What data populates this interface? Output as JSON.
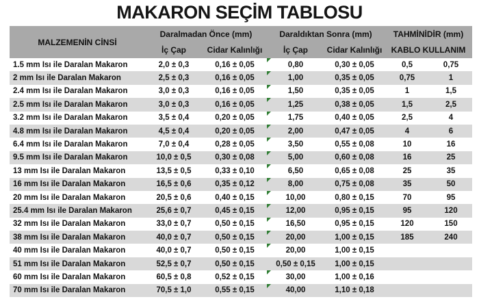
{
  "title": "MAKARON SEÇİM TABLOSU",
  "header": {
    "material": "MALZEMENİN CİNSİ",
    "before_group": "Daralmadan Önce (mm)",
    "after_group": "Daraldıktan Sonra (mm)",
    "estimate_group": "TAHMİNİDİR (mm)",
    "inner_diameter": "İç Çap",
    "wall_thickness": "Cidar Kalınlığı",
    "cable_usage": "KABLO KULLANIM"
  },
  "colors": {
    "header_bg": "#a9a9a9",
    "stripe_bg": "#d9d9d9",
    "indicator_green": "#2e7d32",
    "text": "#111111"
  },
  "chart_data": {
    "type": "table",
    "title": "MAKARON SEÇİM TABLOSU",
    "column_groups": [
      "MALZEMENİN CİNSİ",
      "Daralmadan Önce (mm)",
      "Daraldıktan Sonra (mm)",
      "TAHMİNİDİR (mm) KABLO KULLANIM"
    ],
    "columns": [
      "MALZEMENİN CİNSİ",
      "Daralmadan Önce İç Çap",
      "Daralmadan Önce Cidar Kalınlığı",
      "Daraldıktan Sonra İç Çap",
      "Daraldıktan Sonra Cidar Kalınlığı",
      "KABLO KULLANIM (alt)",
      "KABLO KULLANIM (üst)"
    ],
    "rows": [
      {
        "material": "1.5 mm Isı ile Daralan Makaron",
        "before_ic": "2,0 ± 0,3",
        "before_wall": "0,16 ± 0,05",
        "after_ic": "0,80",
        "after_wall": "0,30 ± 0,05",
        "cable_a": "0,5",
        "cable_b": "0,75",
        "indicator": true
      },
      {
        "material": "2 mm Isı ile Daralan Makaron",
        "before_ic": "2,5 ± 0,3",
        "before_wall": "0,16 ± 0,05",
        "after_ic": "1,00",
        "after_wall": "0,35 ± 0,05",
        "cable_a": "0,75",
        "cable_b": "1",
        "indicator": true
      },
      {
        "material": "2.4 mm Isı ile Daralan Makaron",
        "before_ic": "3,0 ± 0,3",
        "before_wall": "0,16 ± 0,05",
        "after_ic": "1,50",
        "after_wall": "0,35 ± 0,05",
        "cable_a": "1",
        "cable_b": "1,5",
        "indicator": true
      },
      {
        "material": "2.5 mm Isı ile Daralan Makaron",
        "before_ic": "3,0 ± 0,3",
        "before_wall": "0,16 ± 0,05",
        "after_ic": "1,25",
        "after_wall": "0,38 ± 0,05",
        "cable_a": "1,5",
        "cable_b": "2,5",
        "indicator": true
      },
      {
        "material": "3.2 mm Isı ile Daralan Makaron",
        "before_ic": "3,5 ± 0,4",
        "before_wall": "0,20 ± 0,05",
        "after_ic": "1,75",
        "after_wall": "0,40 ± 0,05",
        "cable_a": "2,5",
        "cable_b": "4",
        "indicator": true
      },
      {
        "material": "4.8 mm Isı ile Daralan Makaron",
        "before_ic": "4,5 ± 0,4",
        "before_wall": "0,20 ± 0,05",
        "after_ic": "2,00",
        "after_wall": "0,47 ± 0,05",
        "cable_a": "4",
        "cable_b": "6",
        "indicator": true
      },
      {
        "material": "6.4 mm Isı ile Daralan Makaron",
        "before_ic": "7,0 ± 0,4",
        "before_wall": "0,28 ± 0,05",
        "after_ic": "3,50",
        "after_wall": "0,55 ± 0,08",
        "cable_a": "10",
        "cable_b": "16",
        "indicator": true
      },
      {
        "material": "9.5 mm Isı ile Daralan Makaron",
        "before_ic": "10,0 ± 0,5",
        "before_wall": "0,30 ± 0,08",
        "after_ic": "5,00",
        "after_wall": "0,60 ± 0,08",
        "cable_a": "16",
        "cable_b": "25",
        "indicator": true
      },
      {
        "material": "13 mm Isı ile Daralan Makaron",
        "before_ic": "13,5 ± 0,5",
        "before_wall": "0,33 ± 0,10",
        "after_ic": "6,50",
        "after_wall": "0,65 ± 0,08",
        "cable_a": "25",
        "cable_b": "35",
        "indicator": true
      },
      {
        "material": "16 mm Isı ile Daralan Makaron",
        "before_ic": "16,5 ± 0,6",
        "before_wall": "0,35 ± 0,12",
        "after_ic": "8,00",
        "after_wall": "0,75 ± 0,08",
        "cable_a": "35",
        "cable_b": "50",
        "indicator": true
      },
      {
        "material": "20 mm Isı ile Daralan Makaron",
        "before_ic": "20,5 ± 0,6",
        "before_wall": "0,40 ± 0,15",
        "after_ic": "10,00",
        "after_wall": "0,80 ± 0,15",
        "cable_a": "70",
        "cable_b": "95",
        "indicator": true
      },
      {
        "material": "25.4 mm Isı ile Daralan Makaron",
        "before_ic": "25,6 ± 0,7",
        "before_wall": "0,45 ± 0,15",
        "after_ic": "12,00",
        "after_wall": "0,95 ± 0,15",
        "cable_a": "95",
        "cable_b": "120",
        "indicator": true
      },
      {
        "material": "32 mm Isı ile Daralan Makaron",
        "before_ic": "33,0 ± 0,7",
        "before_wall": "0,50 ± 0,15",
        "after_ic": "16,50",
        "after_wall": "0,95 ± 0,15",
        "cable_a": "120",
        "cable_b": "150",
        "indicator": true
      },
      {
        "material": "38 mm Isı ile Daralan Makaron",
        "before_ic": "40,0 ± 0,7",
        "before_wall": "0,50 ± 0,15",
        "after_ic": "20,00",
        "after_wall": "1,00 ± 0,15",
        "cable_a": "185",
        "cable_b": "240",
        "indicator": true
      },
      {
        "material": "40 mm Isı ile Daralan Makaron",
        "before_ic": "40,0 ± 0,7",
        "before_wall": "0,50 ± 0,15",
        "after_ic": "20,00",
        "after_wall": "1,00 ± 0,15",
        "cable_a": "",
        "cable_b": "",
        "indicator": true
      },
      {
        "material": "51 mm Isı ile Daralan Makaron",
        "before_ic": "52,5 ± 0,7",
        "before_wall": "0,50 ± 0,15",
        "after_ic": "0,50 ± 0,15",
        "after_wall": "1,00 ± 0,15",
        "cable_a": "",
        "cable_b": "",
        "indicator": false
      },
      {
        "material": "60 mm Isı ile Daralan Makaron",
        "before_ic": "60,5 ± 0,8",
        "before_wall": "0,52 ± 0,15",
        "after_ic": "30,00",
        "after_wall": "1,00 ± 0,16",
        "cable_a": "",
        "cable_b": "",
        "indicator": true
      },
      {
        "material": "70 mm Isı ile Daralan Makaron",
        "before_ic": "70,5 ± 1,0",
        "before_wall": "0,55 ± 0,15",
        "after_ic": "40,00",
        "after_wall": "1,10 ± 0,18",
        "cable_a": "",
        "cable_b": "",
        "indicator": true
      }
    ]
  }
}
